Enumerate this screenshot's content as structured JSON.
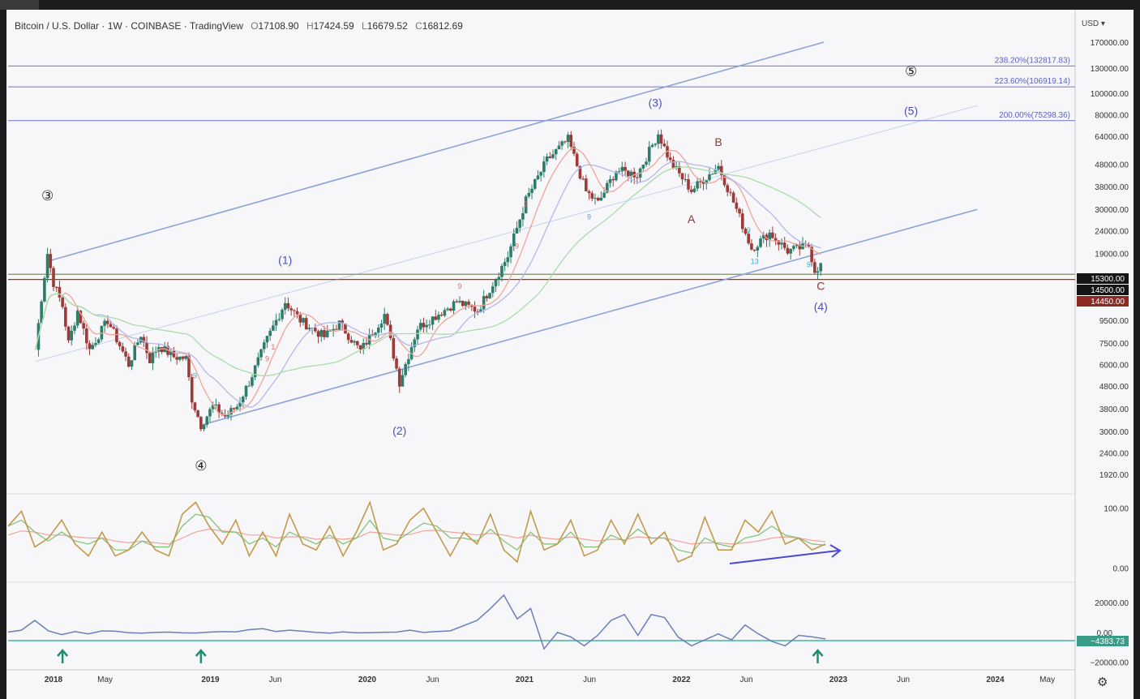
{
  "header": {
    "symbol": "Bitcoin / U.S. Dollar · 1W · COINBASE · TradingView",
    "o_label": "O",
    "o_value": "17108.90",
    "h_label": "H",
    "h_value": "17424.59",
    "l_label": "L",
    "l_value": "16679.52",
    "c_label": "C",
    "c_value": "16812.69",
    "currency": "USD ▾"
  },
  "colors": {
    "bull": "#2d7d6a",
    "bear": "#9c3a38",
    "channel": "#8aa2d9",
    "fib_line": "#6f72c9",
    "fib_text": "#5a5fc3",
    "wave_blue": "#4b50c0",
    "wave_brown": "#8a3a32",
    "ma_red": "#f1a39a",
    "ma_green": "#a8dca9",
    "ma_blue": "#b3b8ee",
    "osc_main": "#c29a4a",
    "baseline": "#6ec4b6",
    "teal_arrow": "#1f8f6a",
    "indicator2": "#6a7fba"
  },
  "chart_data": [
    {
      "type": "candlestick",
      "scale": "log",
      "y_ticks": [
        "170000.00",
        "130000.00",
        "100000.00",
        "80000.00",
        "64000.00",
        "48000.00",
        "38000.00",
        "30000.00",
        "24000.00",
        "19000.00",
        "9500.00",
        "7500.00",
        "6000.00",
        "4800.00",
        "3800.00",
        "3000.00",
        "2400.00",
        "1920.00"
      ],
      "price_tags": [
        {
          "label": "15300.00",
          "value": 15300,
          "style": "dark"
        },
        {
          "label": "14500.00",
          "value": 14500,
          "style": "dark"
        },
        {
          "label": "14450.00",
          "value": 14450,
          "style": "red"
        }
      ],
      "x_ticks": [
        {
          "label": "2018",
          "bold": true
        },
        {
          "label": "May",
          "bold": false
        },
        {
          "label": "2019",
          "bold": true
        },
        {
          "label": "Jun",
          "bold": false
        },
        {
          "label": "2020",
          "bold": true
        },
        {
          "label": "Jun",
          "bold": false
        },
        {
          "label": "2021",
          "bold": true
        },
        {
          "label": "Jun",
          "bold": false
        },
        {
          "label": "2022",
          "bold": true
        },
        {
          "label": "Jun",
          "bold": false
        },
        {
          "label": "2023",
          "bold": true
        },
        {
          "label": "Jun",
          "bold": false
        },
        {
          "label": "2024",
          "bold": true
        },
        {
          "label": "May",
          "bold": false
        }
      ],
      "price_path": [
        [
          "2017-11-20",
          7000
        ],
        [
          "2017-12-04",
          12000
        ],
        [
          "2017-12-18",
          19000
        ],
        [
          "2018-01-01",
          14000
        ],
        [
          "2018-01-22",
          11000
        ],
        [
          "2018-02-05",
          7500
        ],
        [
          "2018-02-26",
          10500
        ],
        [
          "2018-03-26",
          7000
        ],
        [
          "2018-05-07",
          9500
        ],
        [
          "2018-06-25",
          6000
        ],
        [
          "2018-07-23",
          8200
        ],
        [
          "2018-08-13",
          6300
        ],
        [
          "2018-09-03",
          7300
        ],
        [
          "2018-10-08",
          6500
        ],
        [
          "2018-11-05",
          6400
        ],
        [
          "2018-11-19",
          4200
        ],
        [
          "2018-12-10",
          3200
        ],
        [
          "2019-01-07",
          3900
        ],
        [
          "2019-02-04",
          3500
        ],
        [
          "2019-03-04",
          3900
        ],
        [
          "2019-04-01",
          5000
        ],
        [
          "2019-05-13",
          7800
        ],
        [
          "2019-06-24",
          11500
        ],
        [
          "2019-07-29",
          9500
        ],
        [
          "2019-09-23",
          8000
        ],
        [
          "2019-10-28",
          9200
        ],
        [
          "2019-12-16",
          6900
        ],
        [
          "2020-02-10",
          10100
        ],
        [
          "2020-03-16",
          5000
        ],
        [
          "2020-04-27",
          8800
        ],
        [
          "2020-07-27",
          11500
        ],
        [
          "2020-09-14",
          10500
        ],
        [
          "2020-11-23",
          18500
        ],
        [
          "2021-01-04",
          33000
        ],
        [
          "2021-02-22",
          50000
        ],
        [
          "2021-04-12",
          62000
        ],
        [
          "2021-05-24",
          36000
        ],
        [
          "2021-06-21",
          32000
        ],
        [
          "2021-08-02",
          45000
        ],
        [
          "2021-09-20",
          43000
        ],
        [
          "2021-11-08",
          66000
        ],
        [
          "2021-12-06",
          49000
        ],
        [
          "2022-01-24",
          36500
        ],
        [
          "2022-03-28",
          47000
        ],
        [
          "2022-05-09",
          30000
        ],
        [
          "2022-06-13",
          20000
        ],
        [
          "2022-07-25",
          23500
        ],
        [
          "2022-09-05",
          19500
        ],
        [
          "2022-10-24",
          20500
        ],
        [
          "2022-11-07",
          16000
        ],
        [
          "2022-11-21",
          16800
        ]
      ],
      "channel": {
        "lower": [
          [
            "2018-12-10",
            3200
          ],
          [
            "2023-11-20",
            30000
          ]
        ],
        "upper": [
          [
            "2017-12-18",
            17500
          ],
          [
            "2022-11-28",
            170000
          ]
        ],
        "middle": [
          [
            "2017-11-20",
            6200
          ],
          [
            "2023-11-20",
            88000
          ]
        ]
      },
      "fib_levels": [
        {
          "label": "238.20%(132817.83)",
          "value": 132817.83
        },
        {
          "label": "223.60%(106919.14)",
          "value": 106919.14
        },
        {
          "label": "200.00%(75298.36)",
          "value": 75298.36
        }
      ],
      "support_lines": [
        15300,
        14500
      ],
      "wave_labels": [
        {
          "text": "③",
          "date": "2017-12-18",
          "price": 33000,
          "kind": "circle"
        },
        {
          "text": "④",
          "date": "2018-12-10",
          "price": 2000,
          "kind": "circle"
        },
        {
          "text": "⑤",
          "date": "2023-06-19",
          "price": 120000,
          "kind": "circle"
        },
        {
          "text": "(1)",
          "date": "2019-06-24",
          "price": 17000,
          "kind": "blue"
        },
        {
          "text": "(2)",
          "date": "2020-03-16",
          "price": 2900,
          "kind": "blue"
        },
        {
          "text": "(3)",
          "date": "2021-11-01",
          "price": 87000,
          "kind": "blue"
        },
        {
          "text": "(4)",
          "date": "2022-11-21",
          "price": 10500,
          "kind": "blue"
        },
        {
          "text": "(5)",
          "date": "2023-06-19",
          "price": 80000,
          "kind": "blue"
        },
        {
          "text": "A",
          "date": "2022-01-24",
          "price": 26000,
          "kind": "brown"
        },
        {
          "text": "B",
          "date": "2022-03-28",
          "price": 58000,
          "kind": "brown"
        },
        {
          "text": "C",
          "date": "2022-11-21",
          "price": 13000,
          "kind": "brown"
        }
      ],
      "td_counts": [
        {
          "text": "9",
          "date": "2018-11-26",
          "price": 5200,
          "color": "#3fa9c9"
        },
        {
          "text": "9",
          "date": "2019-05-13",
          "price": 6200,
          "color": "#d07070"
        },
        {
          "text": "1",
          "date": "2019-05-27",
          "price": 7000,
          "color": "#d07070"
        },
        {
          "text": "9",
          "date": "2020-08-03",
          "price": 13200,
          "color": "#d07070"
        },
        {
          "text": "9",
          "date": "2020-12-14",
          "price": 20000,
          "color": "#d07070"
        },
        {
          "text": "1",
          "date": "2021-01-04",
          "price": 31000,
          "color": "#d07070"
        },
        {
          "text": "9",
          "date": "2021-05-31",
          "price": 27000,
          "color": "#3fa9c9"
        },
        {
          "text": "9",
          "date": "2022-06-06",
          "price": 23500,
          "color": "#3fa9c9"
        },
        {
          "text": "13",
          "date": "2022-06-20",
          "price": 17000,
          "color": "#3fa9c9"
        },
        {
          "text": "9",
          "date": "2022-10-24",
          "price": 16500,
          "color": "#3fa9c9"
        }
      ]
    },
    {
      "type": "line",
      "name": "oscillator",
      "y_ticks": [
        "100.00",
        "0.00"
      ],
      "main": [
        70,
        95,
        35,
        50,
        80,
        40,
        20,
        60,
        20,
        30,
        60,
        30,
        20,
        90,
        110,
        70,
        40,
        80,
        20,
        60,
        20,
        90,
        40,
        30,
        70,
        20,
        60,
        110,
        30,
        40,
        80,
        100,
        60,
        20,
        60,
        40,
        90,
        30,
        10,
        95,
        30,
        40,
        80,
        20,
        30,
        80,
        40,
        90,
        40,
        60,
        10,
        20,
        85,
        30,
        30,
        80,
        60,
        95,
        40,
        50,
        30,
        40
      ],
      "signal": [
        70,
        80,
        60,
        45,
        60,
        45,
        40,
        50,
        30,
        30,
        45,
        35,
        35,
        70,
        90,
        85,
        60,
        60,
        40,
        50,
        35,
        60,
        50,
        40,
        55,
        40,
        50,
        80,
        50,
        45,
        60,
        75,
        70,
        50,
        50,
        45,
        65,
        45,
        30,
        60,
        40,
        40,
        60,
        35,
        35,
        55,
        45,
        65,
        50,
        50,
        30,
        25,
        50,
        40,
        35,
        50,
        55,
        70,
        55,
        50,
        40,
        38
      ],
      "slow": [
        55,
        62,
        60,
        55,
        55,
        52,
        50,
        50,
        45,
        42,
        45,
        42,
        40,
        50,
        60,
        65,
        62,
        60,
        55,
        55,
        50,
        52,
        52,
        48,
        50,
        48,
        50,
        60,
        58,
        55,
        56,
        62,
        63,
        60,
        58,
        55,
        58,
        55,
        50,
        55,
        50,
        48,
        52,
        48,
        45,
        48,
        47,
        52,
        50,
        50,
        45,
        40,
        42,
        42,
        40,
        42,
        45,
        50,
        52,
        50,
        46,
        44
      ]
    },
    {
      "type": "line",
      "name": "indicator",
      "y_ticks": [
        "20000.00",
        "0.00",
        "−20000.00"
      ],
      "last_value_tag": "−4383.73",
      "values": [
        200,
        1500,
        8000,
        1000,
        -1500,
        500,
        -1000,
        1000,
        800,
        -200,
        -500,
        0,
        200,
        -300,
        -400,
        200,
        500,
        300,
        1800,
        2500,
        600,
        1500,
        800,
        0,
        -500,
        300,
        -300,
        -200,
        100,
        200,
        1500,
        0,
        600,
        1000,
        4500,
        8000,
        16000,
        25000,
        9000,
        16000,
        -11000,
        0,
        -3000,
        -9000,
        -2000,
        8000,
        12000,
        -2000,
        12000,
        10000,
        -3000,
        -9000,
        -5000,
        -1000,
        -5000,
        5000,
        -1000,
        -6000,
        -9000,
        -2000,
        -3000,
        -4383
      ]
    }
  ]
}
